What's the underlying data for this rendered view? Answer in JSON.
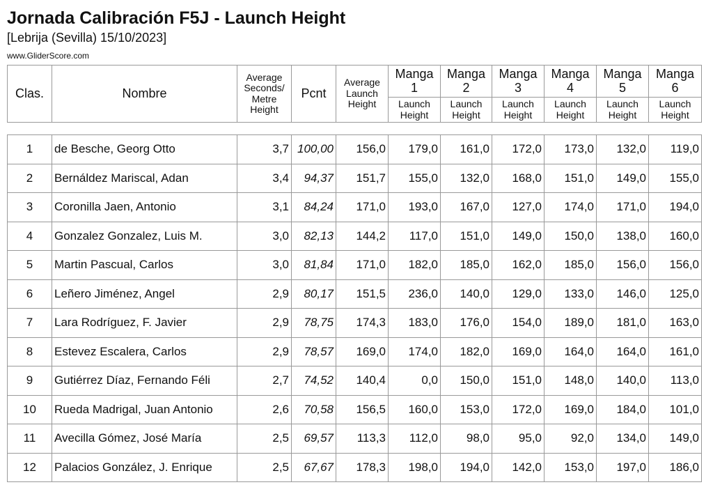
{
  "title": "Jornada Calibración F5J - Launch Height",
  "subtitle": "[Lebrija (Sevilla) 15/10/2023]",
  "website": "www.GliderScore.com",
  "headers": {
    "clas": "Clas.",
    "nombre": "Nombre",
    "avg_sec": "Average Seconds/ Metre Height",
    "pcnt": "Pcnt",
    "avg_launch": "Average Launch Height",
    "mangas": [
      "Manga 1",
      "Manga 2",
      "Manga 3",
      "Manga 4",
      "Manga 5",
      "Manga 6"
    ],
    "launch_height": "Launch Height"
  },
  "rows": [
    [
      "1",
      "de Besche, Georg Otto",
      "3,7",
      "100,00",
      "156,0",
      "179,0",
      "161,0",
      "172,0",
      "173,0",
      "132,0",
      "119,0"
    ],
    [
      "2",
      "Bernáldez Mariscal, Adan",
      "3,4",
      "94,37",
      "151,7",
      "155,0",
      "132,0",
      "168,0",
      "151,0",
      "149,0",
      "155,0"
    ],
    [
      "3",
      "Coronilla Jaen, Antonio",
      "3,1",
      "84,24",
      "171,0",
      "193,0",
      "167,0",
      "127,0",
      "174,0",
      "171,0",
      "194,0"
    ],
    [
      "4",
      "Gonzalez Gonzalez, Luis M.",
      "3,0",
      "82,13",
      "144,2",
      "117,0",
      "151,0",
      "149,0",
      "150,0",
      "138,0",
      "160,0"
    ],
    [
      "5",
      "Martin Pascual, Carlos",
      "3,0",
      "81,84",
      "171,0",
      "182,0",
      "185,0",
      "162,0",
      "185,0",
      "156,0",
      "156,0"
    ],
    [
      "6",
      "Leñero Jiménez, Angel",
      "2,9",
      "80,17",
      "151,5",
      "236,0",
      "140,0",
      "129,0",
      "133,0",
      "146,0",
      "125,0"
    ],
    [
      "7",
      "Lara Rodríguez, F. Javier",
      "2,9",
      "78,75",
      "174,3",
      "183,0",
      "176,0",
      "154,0",
      "189,0",
      "181,0",
      "163,0"
    ],
    [
      "8",
      "Estevez Escalera, Carlos",
      "2,9",
      "78,57",
      "169,0",
      "174,0",
      "182,0",
      "169,0",
      "164,0",
      "164,0",
      "161,0"
    ],
    [
      "9",
      "Gutiérrez Díaz, Fernando Féli",
      "2,7",
      "74,52",
      "140,4",
      "0,0",
      "150,0",
      "151,0",
      "148,0",
      "140,0",
      "113,0"
    ],
    [
      "10",
      "Rueda Madrigal, Juan Antonio",
      "2,6",
      "70,58",
      "156,5",
      "160,0",
      "153,0",
      "172,0",
      "169,0",
      "184,0",
      "101,0"
    ],
    [
      "11",
      "Avecilla Gómez, José María",
      "2,5",
      "69,57",
      "113,3",
      "112,0",
      "98,0",
      "95,0",
      "92,0",
      "134,0",
      "149,0"
    ],
    [
      "12",
      "Palacios González, J. Enrique",
      "2,5",
      "67,67",
      "178,3",
      "198,0",
      "194,0",
      "142,0",
      "153,0",
      "197,0",
      "186,0"
    ]
  ]
}
